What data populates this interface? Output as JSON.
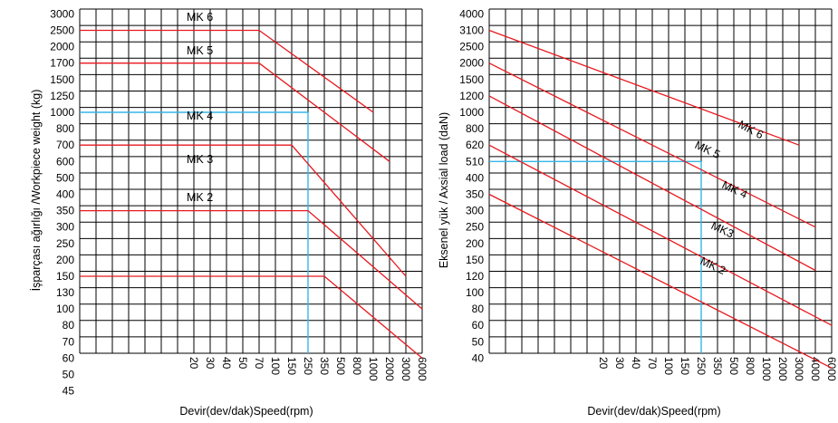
{
  "colors": {
    "grid": "#000000",
    "series": "#e8191f",
    "guide": "#35b6e6",
    "background": "#ffffff"
  },
  "chart_data": [
    {
      "type": "line",
      "ylabel": "İşparçası ağırlığı /Workpiece weight (kg)",
      "xlabel": "Devir(dev/dak)Speed(rpm)",
      "y_ticks": [
        "3000",
        "2500",
        "2000",
        "1700",
        "1500",
        "1250",
        "1000",
        "800",
        "700",
        "600",
        "500",
        "400",
        "350",
        "300",
        "250",
        "200",
        "150",
        "130",
        "100",
        "80",
        "70",
        "60",
        "50",
        "45"
      ],
      "x_ticks": [
        "20",
        "30",
        "40",
        "50",
        "70",
        "100",
        "150",
        "250",
        "350",
        "500",
        "800",
        "1000",
        "2000",
        "3000",
        "6000"
      ],
      "series": [
        {
          "name": "MK 6",
          "points": [
            [
              "1",
              "2500"
            ],
            [
              "70",
              "2500"
            ],
            [
              "1000",
              "1000"
            ]
          ]
        },
        {
          "name": "MK 5",
          "points": [
            [
              "1",
              "1700"
            ],
            [
              "70",
              "1700"
            ],
            [
              "2000",
              "600"
            ]
          ]
        },
        {
          "name": "MK 4",
          "points": [
            [
              "1",
              "700"
            ],
            [
              "150",
              "700"
            ],
            [
              "3000",
              "150"
            ]
          ]
        },
        {
          "name": "MK 3",
          "points": [
            [
              "1",
              "350"
            ],
            [
              "250",
              "350"
            ],
            [
              "6000",
              "100"
            ]
          ]
        },
        {
          "name": "MK 2",
          "points": [
            [
              "1",
              "150"
            ],
            [
              "350",
              "150"
            ],
            [
              "6000",
              "60"
            ]
          ]
        }
      ],
      "guide": {
        "x": "250",
        "y": "1000"
      },
      "grid": true
    },
    {
      "type": "line",
      "ylabel": "Eksenel yük / Axsial load (daN)",
      "xlabel": "Devir(dev/dak)Speed(rpm)",
      "y_ticks": [
        "4000",
        "3100",
        "2500",
        "2000",
        "1500",
        "1200",
        "1000",
        "800",
        "620",
        "510",
        "400",
        "350",
        "300",
        "250",
        "200",
        "150",
        "120",
        "100",
        "80",
        "60",
        "50",
        "40"
      ],
      "x_ticks": [
        "20",
        "30",
        "40",
        "70",
        "100",
        "150",
        "250",
        "350",
        "500",
        "800",
        "1000",
        "2000",
        "3000",
        "4000",
        "6000"
      ],
      "series": [
        {
          "name": "MK 6",
          "points": [
            [
              "1",
              "3100"
            ],
            [
              "3000",
              "620"
            ]
          ]
        },
        {
          "name": "MK 5",
          "points": [
            [
              "1",
              "2000"
            ],
            [
              "4000",
              "250"
            ]
          ]
        },
        {
          "name": "MK 4",
          "points": [
            [
              "1",
              "1200"
            ],
            [
              "4000",
              "130"
            ]
          ]
        },
        {
          "name": "MK3",
          "points": [
            [
              "1",
              "620"
            ],
            [
              "6000",
              "60"
            ]
          ]
        },
        {
          "name": "MK 2",
          "points": [
            [
              "1",
              "350"
            ],
            [
              "6000",
              "35"
            ]
          ]
        }
      ],
      "guide": {
        "x": "250",
        "y": "510"
      },
      "grid": true
    }
  ]
}
